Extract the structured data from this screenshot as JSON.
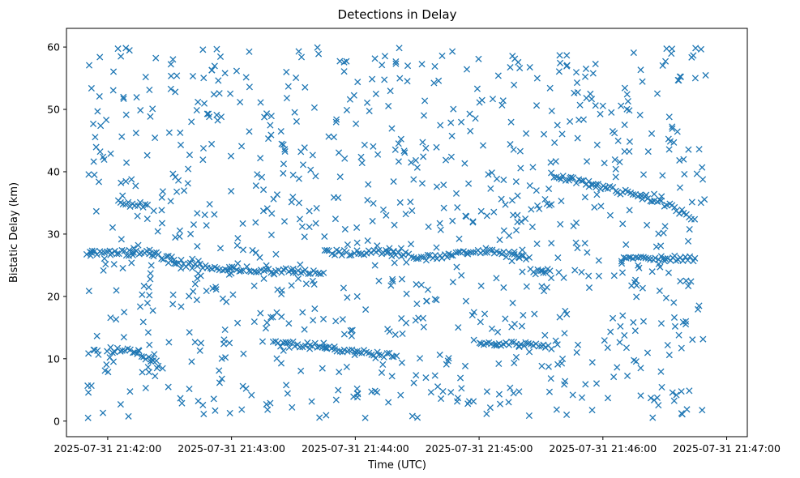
{
  "chart_data": {
    "type": "scatter",
    "title": "Detections in Delay",
    "xlabel": "Time (UTC)",
    "ylabel": "Bistatic Delay (km)",
    "marker": "x",
    "color": "#1f77b4",
    "grid": false,
    "legend": "none",
    "x_ticks": [
      "2025-07-31 21:42:00",
      "2025-07-31 21:43:00",
      "2025-07-31 21:44:00",
      "2025-07-31 21:45:00",
      "2025-07-31 21:46:00",
      "2025-07-31 21:47:00"
    ],
    "y_ticks": [
      "0",
      "10",
      "20",
      "30",
      "40",
      "50",
      "60"
    ],
    "xlim": [
      "2025-07-31 21:41:40",
      "2025-07-31 21:47:10"
    ],
    "ylim": [
      -2.5,
      63
    ],
    "series": [
      {
        "tracks": [
          {
            "x": [
              "2025-07-31 21:41:50",
              "2025-07-31 21:42:20",
              "2025-07-31 21:42:40",
              "2025-07-31 21:43:00",
              "2025-07-31 21:43:30",
              "2025-07-31 21:43:45"
            ],
            "y": [
              27.0,
              27.0,
              25.0,
              24.5,
              24.0,
              23.5
            ]
          },
          {
            "x": [
              "2025-07-31 21:43:45",
              "2025-07-31 21:44:15",
              "2025-07-31 21:44:35",
              "2025-07-31 21:44:45",
              "2025-07-31 21:45:05",
              "2025-07-31 21:45:25"
            ],
            "y": [
              27.0,
              27.0,
              26.2,
              26.5,
              27.3,
              26.0
            ]
          },
          {
            "x": [
              "2025-07-31 21:45:25",
              "2025-07-31 21:45:35"
            ],
            "y": [
              24.0,
              24.0
            ]
          },
          {
            "x": [
              "2025-07-31 21:45:35",
              "2025-07-31 21:46:00",
              "2025-07-31 21:46:25",
              "2025-07-31 21:46:45"
            ],
            "y": [
              39.5,
              37.5,
              35.5,
              32.5
            ]
          },
          {
            "x": [
              "2025-07-31 21:42:00",
              "2025-07-31 21:42:15",
              "2025-07-31 21:42:25"
            ],
            "y": [
              11.5,
              11.0,
              9.0
            ]
          },
          {
            "x": [
              "2025-07-31 21:43:20",
              "2025-07-31 21:43:50"
            ],
            "y": [
              12.5,
              12.0
            ]
          },
          {
            "x": [
              "2025-07-31 21:43:50",
              "2025-07-31 21:44:20"
            ],
            "y": [
              11.5,
              10.5
            ]
          },
          {
            "x": [
              "2025-07-31 21:45:00",
              "2025-07-31 21:45:35"
            ],
            "y": [
              12.5,
              12.0
            ]
          },
          {
            "x": [
              "2025-07-31 21:42:05",
              "2025-07-31 21:42:20"
            ],
            "y": [
              35.0,
              34.5
            ]
          },
          {
            "x": [
              "2025-07-31 21:46:10",
              "2025-07-31 21:46:45"
            ],
            "y": [
              26.5,
              26.0
            ]
          }
        ],
        "scatter_seed": 20250731,
        "scatter_count": 900
      }
    ]
  }
}
